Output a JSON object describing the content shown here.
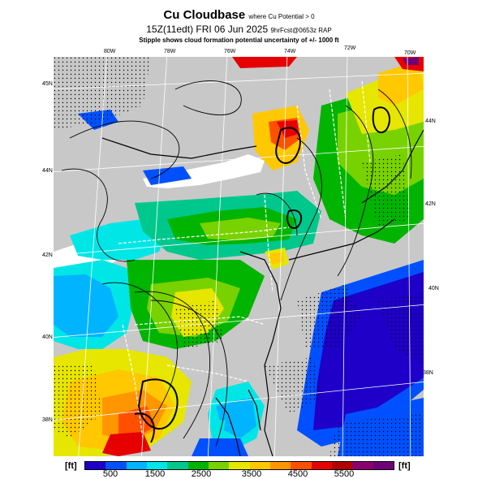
{
  "title": {
    "main": "Cu Cloudbase",
    "main_note": "where Cu Potential > 0",
    "valid": "15Z(11edt) FRI 06 Jun 2025",
    "forecast": "9hrFcst@0653z RAP",
    "stipple_note": "Stipple shows cloud formation potential uncertainty of +/- 1000 ft"
  },
  "longitude_labels": [
    "80W",
    "78W",
    "76W",
    "74W",
    "72W",
    "70W"
  ],
  "latitude_labels_left": [
    "45N",
    "44N",
    "42N",
    "40N",
    "38N"
  ],
  "latitude_labels_right": [
    "44N",
    "42N",
    "40N",
    "38N"
  ],
  "colorbar": {
    "unit_label": "[ft]",
    "tick_labels": [
      "500",
      "1500",
      "2500",
      "3500",
      "4500",
      "5500"
    ],
    "colors": [
      "#1e00c8",
      "#0050ff",
      "#00b4ff",
      "#00e6e6",
      "#00c88c",
      "#00b400",
      "#78d200",
      "#e6e600",
      "#ffc800",
      "#ff9600",
      "#ff5000",
      "#e60000",
      "#b40000",
      "#8c006e",
      "#6e0078"
    ]
  },
  "colors": {
    "land": "#c8c8c8",
    "water_ocean": "#ffffff",
    "border": "#ffffff",
    "contour": "#000000"
  }
}
